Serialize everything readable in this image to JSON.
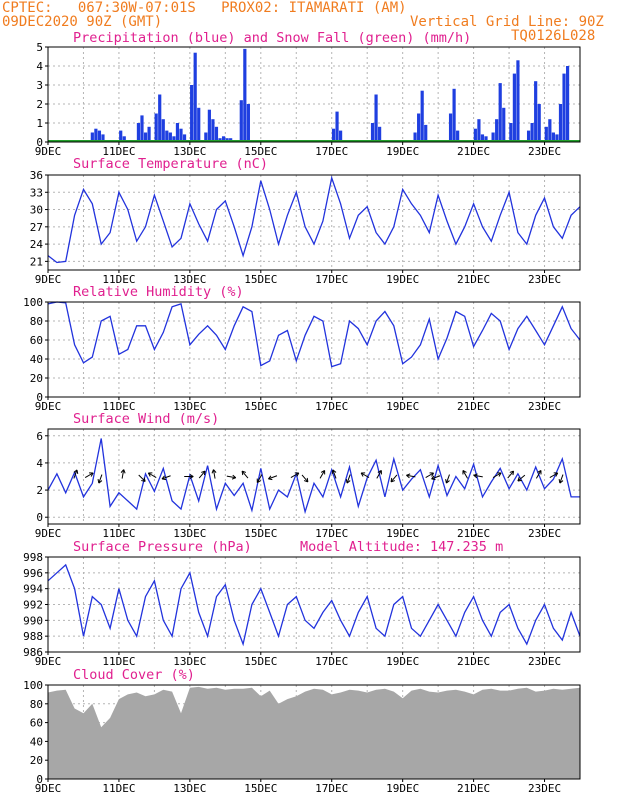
{
  "header": {
    "line1": "CPTEC:   067:30W-07:01S   PROX02: ITAMARATI (AM)",
    "line2_left": "09DEC2020 90Z (GMT)",
    "line2_right": "Vertical Grid Line: 90Z",
    "line3_right": "TQ0126L028"
  },
  "x_axis": {
    "labels": [
      "9DEC",
      "11DEC",
      "13DEC",
      "15DEC",
      "17DEC",
      "19DEC",
      "21DEC",
      "23DEC"
    ],
    "label_days": [
      0,
      2,
      4,
      6,
      8,
      10,
      12,
      14
    ]
  },
  "chart_data": [
    {
      "type": "bar",
      "title": "Precipitation (blue) and Snow Fall (green) (mm/h)",
      "ylim": [
        0,
        5
      ],
      "yticks": [
        "0",
        "1",
        "2",
        "3",
        "4",
        "5"
      ],
      "series": [
        {
          "name": "Precipitation",
          "color": "#1f3fe0",
          "x_days": [
            1.25,
            1.35,
            1.45,
            1.55,
            2.05,
            2.15,
            2.55,
            2.65,
            2.75,
            2.85,
            3.05,
            3.15,
            3.25,
            3.35,
            3.45,
            3.55,
            3.65,
            3.75,
            3.85,
            4.05,
            4.15,
            4.25,
            4.45,
            4.55,
            4.65,
            4.75,
            4.85,
            4.95,
            5.05,
            5.15,
            5.45,
            5.55,
            5.65,
            8.05,
            8.15,
            8.25,
            9.15,
            9.25,
            9.35,
            10.35,
            10.45,
            10.55,
            10.65,
            11.35,
            11.45,
            11.55,
            12.05,
            12.15,
            12.25,
            12.35,
            12.55,
            12.65,
            12.75,
            12.85,
            13.05,
            13.15,
            13.25,
            13.55,
            13.65,
            13.75,
            13.85,
            14.05,
            14.15,
            14.25,
            14.35,
            14.45,
            14.55,
            14.65
          ],
          "values": [
            0.5,
            0.7,
            0.6,
            0.4,
            0.6,
            0.3,
            1.0,
            1.4,
            0.5,
            0.8,
            1.5,
            2.5,
            1.2,
            0.6,
            0.5,
            0.3,
            1.0,
            0.7,
            0.4,
            3.0,
            4.7,
            1.8,
            0.5,
            1.7,
            1.2,
            0.8,
            0.2,
            0.3,
            0.2,
            0.2,
            2.2,
            4.9,
            2.0,
            0.7,
            1.6,
            0.6,
            1.0,
            2.5,
            0.8,
            0.5,
            1.5,
            2.7,
            0.9,
            1.5,
            2.8,
            0.6,
            0.7,
            1.2,
            0.4,
            0.3,
            0.5,
            1.2,
            3.1,
            1.8,
            1.0,
            3.6,
            4.3,
            0.6,
            1.0,
            3.2,
            2.0,
            0.8,
            1.2,
            0.5,
            0.4,
            2.0,
            3.6,
            4.0
          ]
        },
        {
          "name": "Snow Fall",
          "color": "#22a02a",
          "values": [
            0
          ]
        }
      ]
    },
    {
      "type": "line",
      "title": "Surface Temperature (nC)",
      "ylim": [
        19.5,
        36
      ],
      "yticks": [
        "21",
        "24",
        "27",
        "30",
        "33",
        "36"
      ],
      "series": [
        {
          "name": "Temperature",
          "color": "#2233dd",
          "x_days": [
            0,
            0.25,
            0.5,
            0.75,
            1,
            1.25,
            1.5,
            1.75,
            2,
            2.25,
            2.5,
            2.75,
            3,
            3.25,
            3.5,
            3.75,
            4,
            4.25,
            4.5,
            4.75,
            5,
            5.25,
            5.5,
            5.75,
            6,
            6.25,
            6.5,
            6.75,
            7,
            7.25,
            7.5,
            7.75,
            8,
            8.25,
            8.5,
            8.75,
            9,
            9.25,
            9.5,
            9.75,
            10,
            10.25,
            10.5,
            10.75,
            11,
            11.25,
            11.5,
            11.75,
            12,
            12.25,
            12.5,
            12.75,
            13,
            13.25,
            13.5,
            13.75,
            14,
            14.25,
            14.5,
            14.75,
            15
          ],
          "values": [
            22,
            20.8,
            21,
            29,
            33.5,
            31,
            24,
            26,
            33,
            30,
            24.5,
            27,
            32.5,
            28,
            23.5,
            25,
            31,
            27.5,
            24.5,
            30,
            31.5,
            27,
            22,
            27,
            35,
            30,
            24,
            29,
            33,
            27,
            24,
            28,
            35.5,
            31,
            25,
            29,
            30.5,
            26,
            24,
            27,
            33.5,
            31,
            29,
            26,
            32.5,
            28,
            24,
            27,
            31,
            27,
            24.5,
            29,
            33,
            26,
            24,
            29,
            32,
            27,
            25,
            29,
            30.5
          ]
        }
      ]
    },
    {
      "type": "line",
      "title": "Relative Humidity (%)",
      "ylim": [
        0,
        100
      ],
      "yticks": [
        "0",
        "20",
        "40",
        "60",
        "80",
        "100"
      ],
      "series": [
        {
          "name": "Relative Humidity",
          "color": "#2233dd",
          "x_days": [
            0,
            0.25,
            0.5,
            0.75,
            1,
            1.25,
            1.5,
            1.75,
            2,
            2.25,
            2.5,
            2.75,
            3,
            3.25,
            3.5,
            3.75,
            4,
            4.25,
            4.5,
            4.75,
            5,
            5.25,
            5.5,
            5.75,
            6,
            6.25,
            6.5,
            6.75,
            7,
            7.25,
            7.5,
            7.75,
            8,
            8.25,
            8.5,
            8.75,
            9,
            9.25,
            9.5,
            9.75,
            10,
            10.25,
            10.5,
            10.75,
            11,
            11.25,
            11.5,
            11.75,
            12,
            12.25,
            12.5,
            12.75,
            13,
            13.25,
            13.5,
            13.75,
            14,
            14.25,
            14.5,
            14.75,
            15
          ],
          "values": [
            98,
            100,
            99,
            55,
            36,
            42,
            80,
            85,
            45,
            50,
            75,
            75,
            50,
            68,
            95,
            98,
            55,
            66,
            75,
            65,
            50,
            75,
            95,
            90,
            33,
            38,
            65,
            70,
            38,
            65,
            85,
            80,
            32,
            35,
            80,
            72,
            55,
            80,
            90,
            75,
            35,
            42,
            55,
            82,
            40,
            62,
            90,
            85,
            53,
            70,
            88,
            80,
            50,
            72,
            85,
            70,
            55,
            75,
            95,
            72,
            60
          ]
        }
      ]
    },
    {
      "type": "line",
      "title": "Surface Wind (m/s)",
      "ylim": [
        -0.5,
        6.5
      ],
      "yticks": [
        "0",
        "2",
        "4",
        "6"
      ],
      "series": [
        {
          "name": "Wind Speed",
          "color": "#2233dd",
          "x_days": [
            0,
            0.25,
            0.5,
            0.75,
            1,
            1.25,
            1.5,
            1.75,
            2,
            2.25,
            2.5,
            2.75,
            3,
            3.25,
            3.5,
            3.75,
            4,
            4.25,
            4.5,
            4.75,
            5,
            5.25,
            5.5,
            5.75,
            6,
            6.25,
            6.5,
            6.75,
            7,
            7.25,
            7.5,
            7.75,
            8,
            8.25,
            8.5,
            8.75,
            9,
            9.25,
            9.5,
            9.75,
            10,
            10.25,
            10.5,
            10.75,
            11,
            11.25,
            11.5,
            11.75,
            12,
            12.25,
            12.5,
            12.75,
            13,
            13.25,
            13.5,
            13.75,
            14,
            14.25,
            14.5,
            14.75,
            15
          ],
          "values": [
            2,
            3.2,
            1.8,
            3.3,
            1.5,
            2.5,
            5.8,
            0.8,
            1.8,
            1.2,
            0.6,
            3.2,
            1.9,
            3.6,
            1.2,
            0.6,
            3.1,
            1.2,
            3.8,
            0.6,
            2.5,
            1.6,
            2.5,
            0.5,
            3.6,
            0.6,
            2.0,
            1.5,
            3.2,
            0.4,
            2.5,
            1.5,
            3.5,
            1.5,
            3.7,
            0.8,
            2.9,
            4.2,
            1.5,
            4.3,
            2.0,
            2.8,
            3.5,
            1.5,
            3.8,
            1.6,
            3.0,
            2.1,
            3.9,
            1.5,
            2.6,
            3.6,
            2.1,
            3.2,
            2.0,
            3.7,
            2.1,
            2.8,
            4.3,
            1.5,
            1.5
          ]
        }
      ],
      "arrows_x_days": [
        0.75,
        1.1,
        1.5,
        2.1,
        2.6,
        3.0,
        3.4,
        3.9,
        4.3,
        4.7,
        5.1,
        5.6,
        6.0,
        6.4,
        6.9,
        7.2,
        7.7,
        8.1,
        8.5,
        9.0,
        9.3,
        9.8,
        10.3,
        10.7,
        11.0,
        11.3,
        11.8,
        12.2,
        12.6,
        13.0,
        13.4,
        13.8,
        14.2,
        14.5
      ],
      "arrows_dir_deg": [
        20,
        60,
        200,
        10,
        135,
        300,
        250,
        90,
        40,
        350,
        100,
        320,
        210,
        250,
        60,
        140,
        30,
        340,
        200,
        300,
        30,
        220,
        280,
        60,
        250,
        200,
        330,
        280,
        60,
        40,
        230,
        30,
        60,
        200
      ]
    },
    {
      "type": "line",
      "title": "Surface Pressure (hPa)",
      "annotation": "Model Altitude: 147.235 m",
      "ylim": [
        986,
        998
      ],
      "yticks": [
        "986",
        "988",
        "990",
        "992",
        "994",
        "996",
        "998"
      ],
      "series": [
        {
          "name": "Pressure",
          "color": "#2233dd",
          "x_days": [
            0,
            0.25,
            0.5,
            0.75,
            1,
            1.25,
            1.5,
            1.75,
            2,
            2.25,
            2.5,
            2.75,
            3,
            3.25,
            3.5,
            3.75,
            4,
            4.25,
            4.5,
            4.75,
            5,
            5.25,
            5.5,
            5.75,
            6,
            6.25,
            6.5,
            6.75,
            7,
            7.25,
            7.5,
            7.75,
            8,
            8.25,
            8.5,
            8.75,
            9,
            9.25,
            9.5,
            9.75,
            10,
            10.25,
            10.5,
            10.75,
            11,
            11.25,
            11.5,
            11.75,
            12,
            12.25,
            12.5,
            12.75,
            13,
            13.25,
            13.5,
            13.75,
            14,
            14.25,
            14.5,
            14.75,
            15
          ],
          "values": [
            995,
            996,
            997,
            994,
            988,
            993,
            992,
            989,
            994,
            990,
            988,
            993,
            995,
            990,
            988,
            994,
            996,
            991,
            988,
            993,
            994.5,
            990,
            987,
            992,
            994,
            991,
            988,
            992,
            993,
            990,
            989,
            991,
            992.5,
            990,
            988,
            991,
            993,
            989,
            988,
            992,
            993,
            989,
            988,
            990,
            992,
            990,
            988,
            991,
            993,
            990,
            988,
            991,
            992,
            989,
            987,
            990,
            992,
            989,
            987.5,
            991,
            988
          ]
        }
      ]
    },
    {
      "type": "area",
      "title": "Cloud Cover (%)",
      "ylim": [
        0,
        100
      ],
      "yticks": [
        "0",
        "20",
        "40",
        "60",
        "80",
        "100"
      ],
      "series": [
        {
          "name": "Cloud Cover",
          "color": "#a7a7a7",
          "x_days": [
            0,
            0.25,
            0.5,
            0.75,
            1,
            1.25,
            1.5,
            1.75,
            2,
            2.25,
            2.5,
            2.75,
            3,
            3.25,
            3.5,
            3.75,
            4,
            4.25,
            4.5,
            4.75,
            5,
            5.25,
            5.5,
            5.75,
            6,
            6.25,
            6.5,
            6.75,
            7,
            7.25,
            7.5,
            7.75,
            8,
            8.25,
            8.5,
            8.75,
            9,
            9.25,
            9.5,
            9.75,
            10,
            10.25,
            10.5,
            10.75,
            11,
            11.25,
            11.5,
            11.75,
            12,
            12.25,
            12.5,
            12.75,
            13,
            13.25,
            13.5,
            13.75,
            14,
            14.25,
            14.5,
            14.75,
            15
          ],
          "values": [
            92,
            94,
            95,
            75,
            70,
            80,
            55,
            65,
            85,
            90,
            92,
            88,
            90,
            95,
            93,
            70,
            97,
            98,
            96,
            97,
            95,
            96,
            96,
            97,
            88,
            94,
            80,
            85,
            88,
            93,
            96,
            95,
            90,
            92,
            95,
            94,
            92,
            95,
            96,
            93,
            86,
            94,
            96,
            93,
            92,
            94,
            95,
            93,
            90,
            95,
            96,
            94,
            94,
            96,
            97,
            93,
            94,
            96,
            95,
            96,
            97
          ]
        }
      ]
    }
  ]
}
